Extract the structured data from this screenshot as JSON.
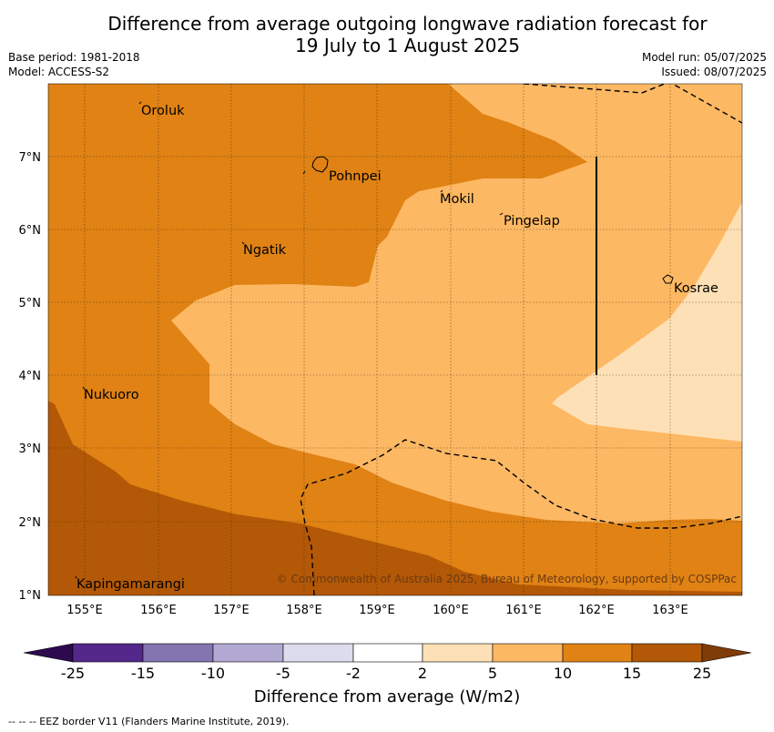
{
  "title_line1": "Difference from average outgoing longwave radiation forecast for",
  "title_line2": "19 July to 1 August 2025",
  "base_period": "Base period: 1981-2018",
  "model": "Model: ACCESS-S2",
  "model_run": "Model run: 05/07/2025",
  "issued": "Issued: 08/07/2025",
  "places": {
    "oroluk": "Oroluk",
    "pohnpei": "Pohnpei",
    "mokil": "Mokil",
    "pingelap": "Pingelap",
    "ngatik": "Ngatik",
    "kosrae": "Kosrae",
    "nukuoro": "Nukuoro",
    "kapingamarangi": "Kapingamarangi"
  },
  "lat_labels": [
    "7°N",
    "6°N",
    "5°N",
    "4°N",
    "3°N",
    "2°N",
    "1°N"
  ],
  "lon_labels": [
    "155°E",
    "156°E",
    "157°E",
    "158°E",
    "159°E",
    "160°E",
    "161°E",
    "162°E",
    "163°E"
  ],
  "copyright": "© Commonwealth of Australia 2025, Bureau of Meteorology, supported by COSPPac",
  "colorbar": {
    "title": "Difference from average (W/m2)",
    "ticks": [
      "-25",
      "-15",
      "-10",
      "-5",
      "-2",
      "2",
      "5",
      "10",
      "15",
      "25"
    ],
    "colors": {
      "below_-25": "#2d0a4e",
      "-25_-15": "#53288a",
      "-15_-10": "#8474b0",
      "-10_-5": "#b2a9d3",
      "-5_-2": "#dcdcee",
      "-2_2": "#ffffff",
      "2_5": "#fee0b6",
      "5_10": "#fdb863",
      "10_15": "#e08214",
      "15_25": "#b35806",
      "above_25": "#7f3b08"
    }
  },
  "eez_note": "--  --  -- EEZ border V11 (Flanders Marine Institute, 2019)."
}
